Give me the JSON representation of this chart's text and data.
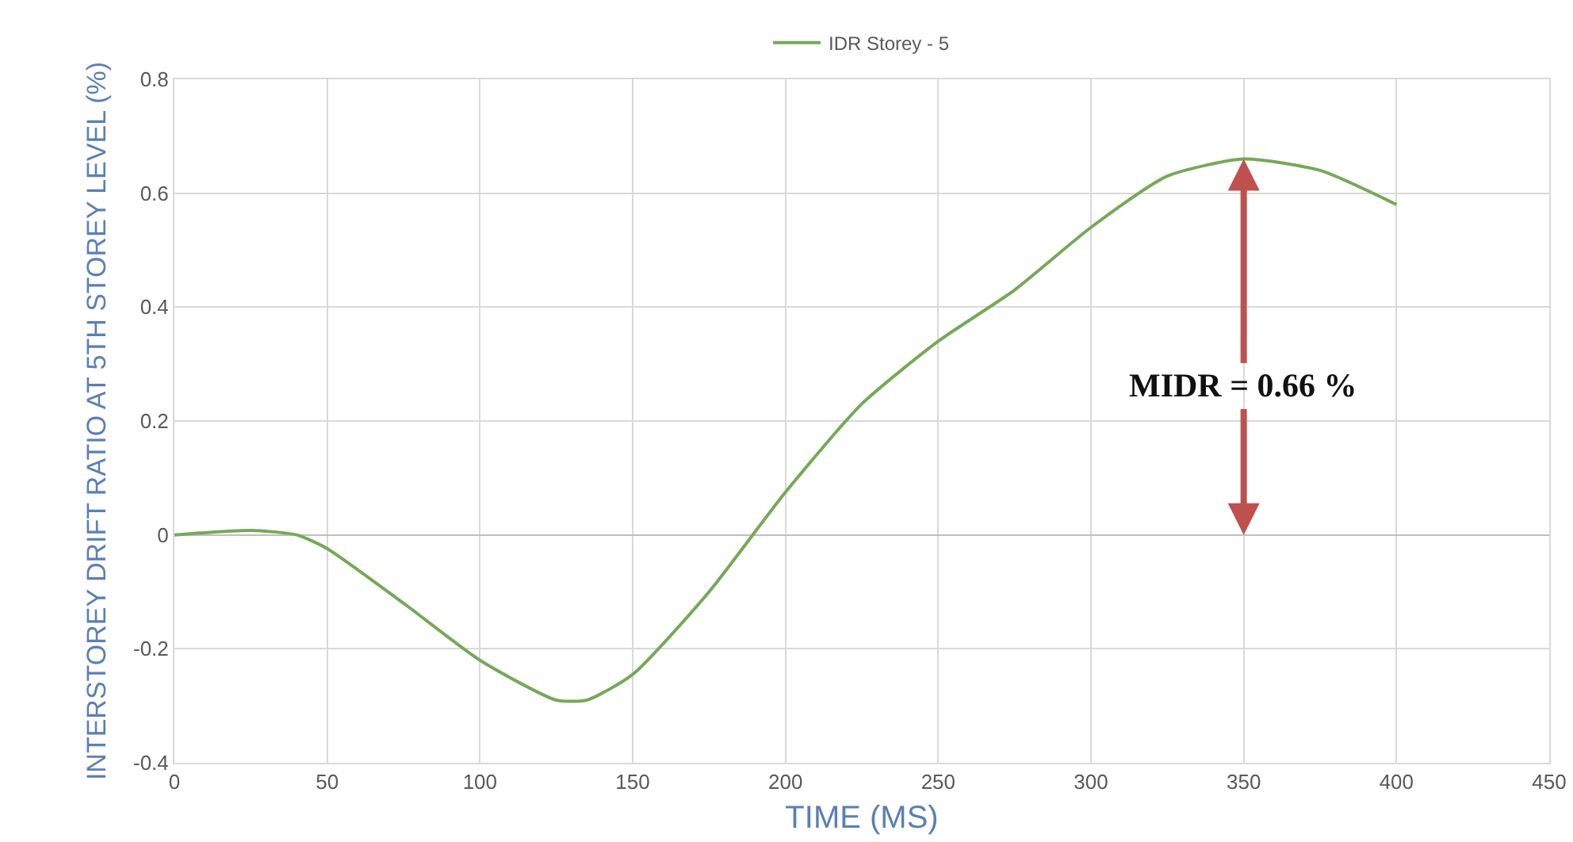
{
  "chart_data": {
    "type": "line",
    "xlabel": "TIME (MS)",
    "ylabel": "INTERSTOREY DRIFT RATIO AT 5TH STOREY LEVEL (%)",
    "x": [
      0,
      25,
      40,
      50,
      75,
      100,
      125,
      135,
      150,
      175,
      200,
      225,
      250,
      275,
      300,
      325,
      350,
      375,
      400
    ],
    "series": [
      {
        "name": "IDR Storey - 5",
        "color": "#77a85a",
        "values": [
          0,
          0.008,
          0,
          -0.024,
          -0.12,
          -0.22,
          -0.29,
          -0.29,
          -0.245,
          -0.1,
          0.075,
          0.23,
          0.34,
          0.43,
          0.54,
          0.63,
          0.66,
          0.64,
          0.58
        ]
      }
    ],
    "xlim": [
      0,
      450
    ],
    "xticks": [
      0,
      50,
      100,
      150,
      200,
      250,
      300,
      350,
      400,
      450
    ],
    "ylim": [
      -0.4,
      0.8
    ],
    "yticks": [
      -0.4,
      -0.2,
      0,
      0.2,
      0.4,
      0.6,
      0.8
    ],
    "annotations": [
      {
        "text": "MIDR = 0.66 %",
        "x": 350,
        "y": 0.66
      }
    ],
    "grid": true,
    "legend": "top",
    "marker": "none",
    "line_style": "solid"
  }
}
